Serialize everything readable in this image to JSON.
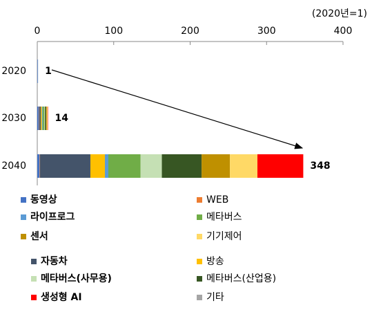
{
  "chart_data": {
    "type": "stacked-bar-horizontal",
    "unit_note": "(2020년=1)",
    "categories": [
      "2020",
      "2030",
      "2040"
    ],
    "totals": [
      1,
      14,
      348
    ],
    "xlim": [
      0,
      400
    ],
    "xticks": [
      0,
      100,
      200,
      300,
      400
    ],
    "series": [
      {
        "name": "동영상",
        "color": "#4472c4",
        "values": [
          0.6,
          2,
          3
        ]
      },
      {
        "name": "WEB",
        "color": "#ed7d31",
        "values": [
          0.1,
          0.5,
          0.5
        ]
      },
      {
        "name": "자동차",
        "color": "#44546a",
        "values": [
          0,
          2,
          66
        ]
      },
      {
        "name": "방송",
        "color": "#ffc000",
        "values": [
          0,
          1.5,
          19
        ]
      },
      {
        "name": "라이프로그",
        "color": "#5b9bd5",
        "values": [
          0.3,
          1,
          4.5
        ]
      },
      {
        "name": "메타버스",
        "color": "#70ad47",
        "values": [
          0,
          2,
          42
        ]
      },
      {
        "name": "메타버스(사무용)",
        "color": "#c5e0b4",
        "values": [
          0,
          1,
          28
        ]
      },
      {
        "name": "메타버스(산업용)",
        "color": "#375623",
        "values": [
          0,
          1.5,
          52
        ]
      },
      {
        "name": "센서",
        "color": "#bf9000",
        "values": [
          0,
          1,
          37
        ]
      },
      {
        "name": "기기제어",
        "color": "#ffd966",
        "values": [
          0,
          1,
          36
        ]
      },
      {
        "name": "생성형 AI",
        "color": "#ff0000",
        "values": [
          0,
          0.5,
          60
        ]
      },
      {
        "name": "기타",
        "color": "#a5a5a5",
        "values": [
          0,
          0,
          0
        ]
      }
    ]
  }
}
